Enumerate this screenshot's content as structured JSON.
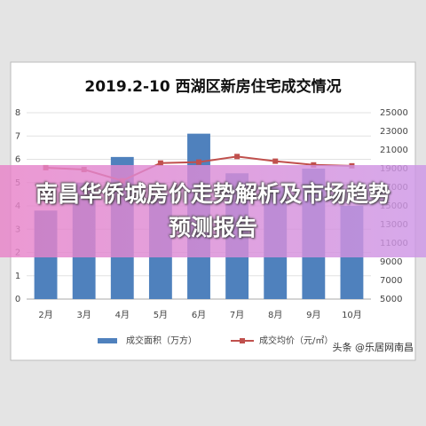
{
  "chart_data": {
    "type": "bar-line",
    "title": "2019.2-10 西湖区新房住宅成交情况",
    "categories": [
      "2月",
      "3月",
      "4月",
      "5月",
      "6月",
      "7月",
      "8月",
      "9月",
      "10月"
    ],
    "series": [
      {
        "name": "成交面积（万方）",
        "color": "#4f81bd",
        "type": "bar",
        "values": [
          3.8,
          5.0,
          6.1,
          4.5,
          7.1,
          5.4,
          4.8,
          5.6,
          4.0
        ]
      },
      {
        "name": "成交均价（元/㎡）",
        "color": "#c0504d",
        "type": "line",
        "axis": "y2",
        "values": [
          19100,
          18900,
          17700,
          19600,
          19700,
          20300,
          19800,
          19400,
          19300
        ]
      }
    ],
    "ylim": [
      0,
      8
    ],
    "yticks": [
      0,
      1,
      2,
      3,
      4,
      5,
      6,
      7,
      8
    ],
    "y2lim": [
      5000,
      25000
    ],
    "y2ticks": [
      5000,
      7000,
      9000,
      11000,
      13000,
      15000,
      17000,
      19000,
      21000,
      23000,
      25000
    ],
    "grid": true
  },
  "banner": {
    "title": "南昌华侨城房价走势解析及市场趋势预测报告"
  },
  "watermark": "头条 @乐居网南昌"
}
